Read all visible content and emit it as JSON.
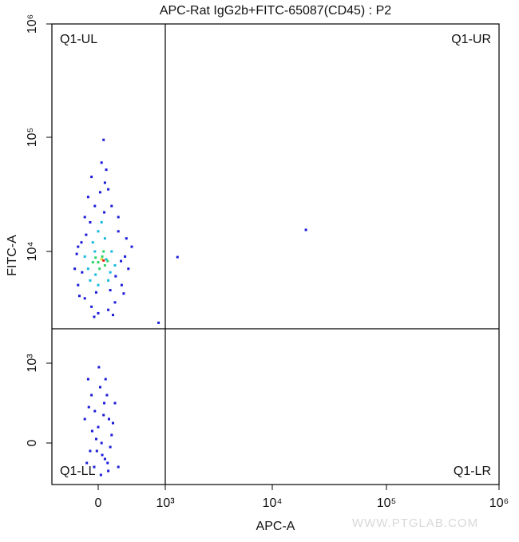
{
  "chart_data": {
    "type": "scatter",
    "title": "APC-Rat IgG2b+FITC-65087(CD45) : P2",
    "x_label": "APC-A",
    "y_label": "FITC-A",
    "scale": "biexponential",
    "xlim": [
      -700,
      1000000
    ],
    "ylim": [
      -520,
      1000000
    ],
    "xticks": [
      0,
      {
        "value": 1000,
        "label": "10³"
      },
      {
        "value": 10000,
        "label": "10⁴"
      },
      {
        "value": 100000,
        "label": "10⁵"
      },
      {
        "value": 1000000,
        "label": "10⁶"
      }
    ],
    "yticks": [
      0,
      {
        "value": 1000,
        "label": "10³"
      },
      {
        "value": 10000,
        "label": "10⁴"
      },
      {
        "value": 100000,
        "label": "10⁵"
      },
      {
        "value": 1000000,
        "label": "10⁶"
      }
    ],
    "quadrant": {
      "x": 1000,
      "y": 2030,
      "labels": [
        "Q1-UL",
        "Q1-UR",
        "Q1-LL",
        "Q1-LR"
      ]
    },
    "watermark": "WWW.PTGLAB.COM",
    "series": [
      {
        "color": "#1a1ad8",
        "x": [
          -300,
          -250,
          -200,
          -150,
          -100,
          50,
          100,
          200,
          300,
          400,
          450,
          350,
          250,
          150,
          0,
          -100,
          -280,
          -350,
          -320,
          -200,
          80,
          150,
          -50,
          300,
          -180,
          500,
          380,
          -60,
          220,
          -240,
          120,
          -120,
          420,
          30,
          260,
          -300,
          180,
          -30,
          90,
          340,
          -150,
          -100,
          -50,
          0,
          50,
          100,
          150,
          200,
          250,
          -200,
          -120,
          -60,
          30,
          80,
          130,
          180,
          -30,
          60,
          -170,
          220,
          10,
          -90,
          110,
          160,
          300,
          -140,
          40,
          90,
          -20,
          140,
          1300,
          19700,
          900
        ],
        "y": [
          5000,
          12000,
          20000,
          30000,
          45000,
          60000,
          40000,
          25000,
          15000,
          9000,
          7000,
          5000,
          3500,
          3000,
          2800,
          3200,
          4000,
          7000,
          9500,
          3800,
          95000,
          35000,
          25000,
          20000,
          14000,
          11000,
          4200,
          2600,
          2700,
          6500,
          52000,
          18000,
          13000,
          33000,
          6000,
          11000,
          4500,
          4300,
          22000,
          8200,
          800,
          600,
          400,
          200,
          0,
          -200,
          -350,
          100,
          500,
          300,
          -100,
          -300,
          700,
          350,
          600,
          -50,
          50,
          -150,
          -250,
          250,
          950,
          150,
          800,
          300,
          -300,
          450,
          -400,
          500,
          -100,
          -250,
          8900,
          15450,
          2300
        ]
      },
      {
        "color": "#16b8e0",
        "x": [
          -150,
          -80,
          0,
          100,
          200,
          250,
          150,
          0,
          -120,
          -200,
          50,
          -50,
          180,
          -40,
          120
        ],
        "y": [
          7000,
          12000,
          15000,
          13000,
          10000,
          7500,
          5500,
          5000,
          5500,
          9000,
          18000,
          10000,
          6500,
          6200,
          8500
        ]
      },
      {
        "color": "#2ed36a",
        "x": [
          0,
          60,
          -40,
          100,
          20,
          -80,
          80,
          140
        ],
        "y": [
          8000,
          9000,
          8800,
          7500,
          7000,
          8000,
          10000,
          8200
        ]
      },
      {
        "color": "#e8d020",
        "x": [
          50
        ],
        "y": [
          8500
        ]
      },
      {
        "color": "#e02020",
        "x": [
          80
        ],
        "y": [
          8300
        ]
      }
    ]
  }
}
